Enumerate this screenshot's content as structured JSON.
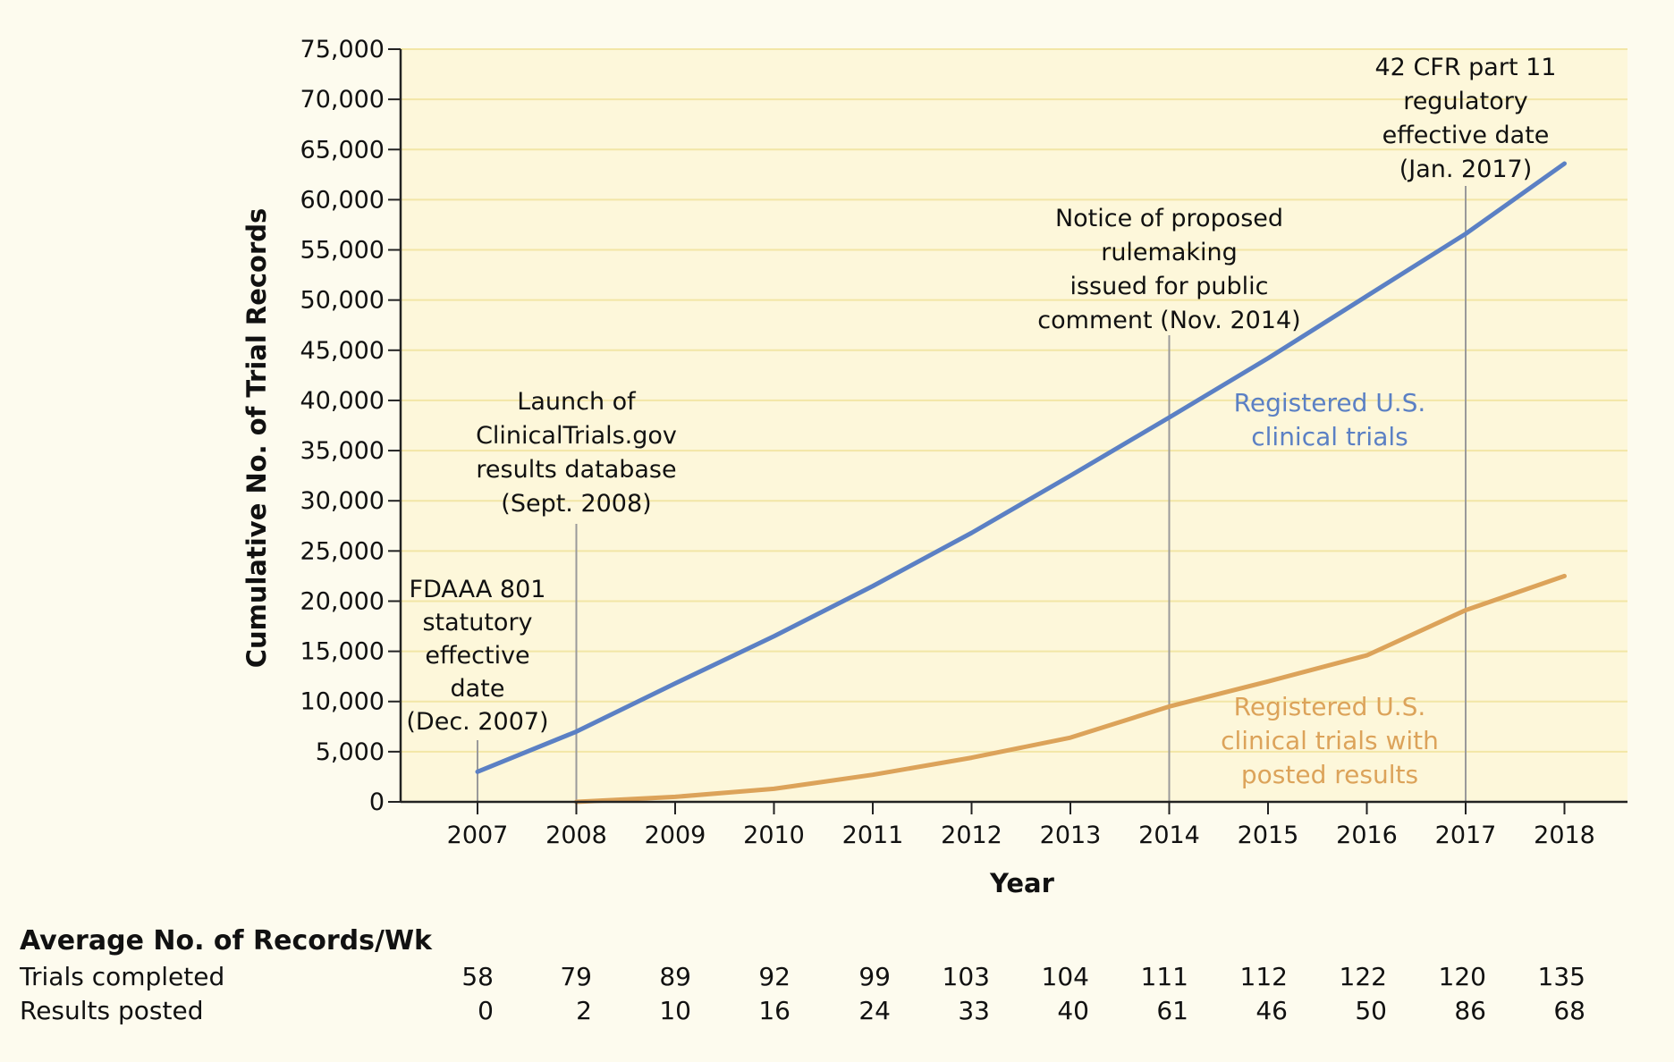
{
  "chart_data": {
    "type": "line",
    "xlabel": "Year",
    "ylabel": "Cumulative No. of Trial Records",
    "ylim": [
      0,
      75000
    ],
    "yticks": [
      0,
      5000,
      10000,
      15000,
      20000,
      25000,
      30000,
      35000,
      40000,
      45000,
      50000,
      55000,
      60000,
      65000,
      70000,
      75000
    ],
    "ytick_labels": [
      "0",
      "5,000",
      "10,000",
      "15,000",
      "20,000",
      "25,000",
      "30,000",
      "35,000",
      "40,000",
      "45,000",
      "50,000",
      "55,000",
      "60,000",
      "65,000",
      "70,000",
      "75,000"
    ],
    "categories": [
      "2007",
      "2008",
      "2009",
      "2010",
      "2011",
      "2012",
      "2013",
      "2014",
      "2015",
      "2016",
      "2017",
      "2018"
    ],
    "grid": true,
    "series": [
      {
        "name": "Registered U.S. clinical trials",
        "label_lines": [
          "Registered U.S.",
          "clinical trials"
        ],
        "color": "#5b80c4",
        "x": [
          2007,
          2008,
          2009,
          2010,
          2011,
          2012,
          2013,
          2014,
          2015,
          2016,
          2017,
          2018
        ],
        "values": [
          3000,
          7000,
          11800,
          16500,
          21500,
          26800,
          32500,
          38300,
          44200,
          50400,
          56600,
          63600
        ]
      },
      {
        "name": "Registered U.S. clinical trials with posted results",
        "label_lines": [
          "Registered U.S.",
          "clinical trials with",
          "posted results"
        ],
        "color": "#dca35a",
        "x": [
          2008,
          2009,
          2010,
          2011,
          2012,
          2013,
          2014,
          2015,
          2016,
          2017,
          2018
        ],
        "values": [
          0,
          500,
          1300,
          2700,
          4400,
          6400,
          9500,
          12000,
          14600,
          19100,
          22500
        ]
      }
    ],
    "annotations": [
      {
        "x": 2007,
        "lines": [
          "FDAAA 801",
          "statutory",
          "effective",
          "date",
          "(Dec. 2007)"
        ]
      },
      {
        "x": 2008,
        "lines": [
          "Launch of",
          "ClinicalTrials.gov",
          "results database",
          "(Sept. 2008)"
        ]
      },
      {
        "x": 2014,
        "lines": [
          "Notice of proposed",
          "rulemaking",
          "issued for public",
          "comment (Nov. 2014)"
        ]
      },
      {
        "x": 2017,
        "lines": [
          "42 CFR part 11",
          "regulatory",
          "effective date",
          "(Jan. 2017)"
        ]
      }
    ]
  },
  "table": {
    "title": "Average No. of Records/Wk",
    "rows": [
      {
        "label": "Trials completed",
        "values": [
          "58",
          "79",
          "89",
          "92",
          "99",
          "103",
          "104",
          "111",
          "112",
          "122",
          "120",
          "135"
        ]
      },
      {
        "label": "Results posted",
        "values": [
          "0",
          "2",
          "10",
          "16",
          "24",
          "33",
          "40",
          "61",
          "46",
          "50",
          "86",
          "68"
        ]
      }
    ]
  }
}
